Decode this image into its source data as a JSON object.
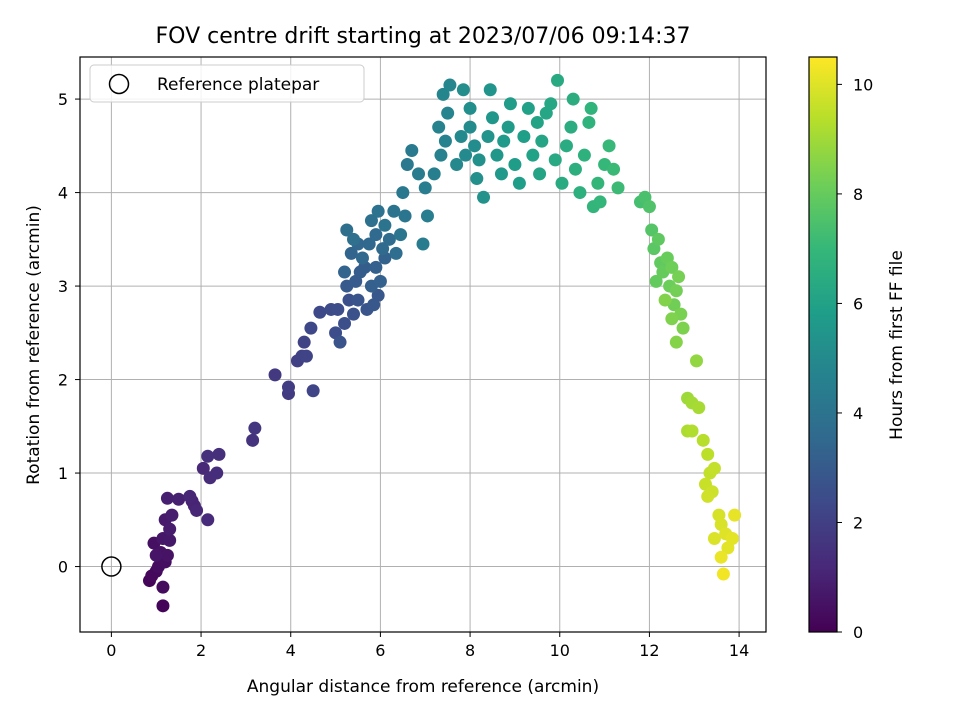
{
  "chart_data": {
    "type": "scatter",
    "title": "FOV centre drift starting at 2023/07/06 09:14:37",
    "xlabel": "Angular distance from reference (arcmin)",
    "ylabel": "Rotation from reference (arcmin)",
    "xlim": [
      -0.7,
      14.6
    ],
    "ylim": [
      -0.7,
      5.45
    ],
    "xticks": [
      0,
      2,
      4,
      6,
      8,
      10,
      12,
      14
    ],
    "yticks": [
      0,
      1,
      2,
      3,
      4,
      5
    ],
    "grid": true,
    "legend": {
      "position": "top-left",
      "entries": [
        "Reference platepar"
      ]
    },
    "reference_point": {
      "x": 0,
      "y": 0
    },
    "colorbar": {
      "label": "Hours from first FF file",
      "range": [
        0,
        10.5
      ],
      "ticks": [
        0,
        2,
        4,
        6,
        8,
        10
      ],
      "colormap": "viridis",
      "colors": [
        "#440154",
        "#482878",
        "#3e4989",
        "#31688e",
        "#26828e",
        "#1f9e89",
        "#35b779",
        "#6ece58",
        "#b5de2b",
        "#fde725"
      ]
    },
    "points": [
      [
        1.15,
        -0.42,
        0.1
      ],
      [
        0.85,
        -0.15,
        0.15
      ],
      [
        0.9,
        -0.1,
        0.2
      ],
      [
        1.0,
        -0.05,
        0.25
      ],
      [
        1.15,
        -0.22,
        0.3
      ],
      [
        1.05,
        0.0,
        0.35
      ],
      [
        1.2,
        0.05,
        0.4
      ],
      [
        0.95,
        0.25,
        0.45
      ],
      [
        1.1,
        0.15,
        0.5
      ],
      [
        1.25,
        0.12,
        0.55
      ],
      [
        1.0,
        0.12,
        0.6
      ],
      [
        1.15,
        0.3,
        0.65
      ],
      [
        1.3,
        0.28,
        0.7
      ],
      [
        1.2,
        0.5,
        0.75
      ],
      [
        1.3,
        0.4,
        0.8
      ],
      [
        1.35,
        0.55,
        0.85
      ],
      [
        1.25,
        0.73,
        0.9
      ],
      [
        1.5,
        0.72,
        0.95
      ],
      [
        1.8,
        0.7,
        1.0
      ],
      [
        1.85,
        0.65,
        1.05
      ],
      [
        1.75,
        0.75,
        1.1
      ],
      [
        1.9,
        0.6,
        1.15
      ],
      [
        2.05,
        1.05,
        1.2
      ],
      [
        2.15,
        0.5,
        1.25
      ],
      [
        2.2,
        0.95,
        1.3
      ],
      [
        2.35,
        1.0,
        1.35
      ],
      [
        2.4,
        1.2,
        1.4
      ],
      [
        2.15,
        1.18,
        1.45
      ],
      [
        3.15,
        1.35,
        1.55
      ],
      [
        3.2,
        1.48,
        1.65
      ],
      [
        3.65,
        2.05,
        1.75
      ],
      [
        3.95,
        1.85,
        1.85
      ],
      [
        3.95,
        1.92,
        1.9
      ],
      [
        4.15,
        2.2,
        2.0
      ],
      [
        4.25,
        2.25,
        2.05
      ],
      [
        4.3,
        2.4,
        2.1
      ],
      [
        4.35,
        2.25,
        2.15
      ],
      [
        4.5,
        1.88,
        2.2
      ],
      [
        4.45,
        2.55,
        2.3
      ],
      [
        4.65,
        2.72,
        2.35
      ],
      [
        4.9,
        2.75,
        2.4
      ],
      [
        5.0,
        2.5,
        2.45
      ],
      [
        5.05,
        2.75,
        2.5
      ],
      [
        5.2,
        2.6,
        2.55
      ],
      [
        5.3,
        2.85,
        2.6
      ],
      [
        5.4,
        2.7,
        2.65
      ],
      [
        5.1,
        2.4,
        2.7
      ],
      [
        5.5,
        2.85,
        2.75
      ],
      [
        5.7,
        2.75,
        2.8
      ],
      [
        5.85,
        2.8,
        2.85
      ],
      [
        5.95,
        2.9,
        2.9
      ],
      [
        5.25,
        3.0,
        2.95
      ],
      [
        5.45,
        3.05,
        3.0
      ],
      [
        5.55,
        3.15,
        3.05
      ],
      [
        5.65,
        3.2,
        3.1
      ],
      [
        5.8,
        3.0,
        3.15
      ],
      [
        5.9,
        3.2,
        3.2
      ],
      [
        6.0,
        3.05,
        3.25
      ],
      [
        6.1,
        3.3,
        3.3
      ],
      [
        5.2,
        3.15,
        3.35
      ],
      [
        5.35,
        3.35,
        3.4
      ],
      [
        5.5,
        3.45,
        3.45
      ],
      [
        5.6,
        3.3,
        3.5
      ],
      [
        5.75,
        3.45,
        3.55
      ],
      [
        5.9,
        3.55,
        3.6
      ],
      [
        6.05,
        3.4,
        3.65
      ],
      [
        6.2,
        3.5,
        3.7
      ],
      [
        6.35,
        3.35,
        3.75
      ],
      [
        5.25,
        3.6,
        3.8
      ],
      [
        5.4,
        3.5,
        3.85
      ],
      [
        5.8,
        3.7,
        3.9
      ],
      [
        5.95,
        3.8,
        3.95
      ],
      [
        6.1,
        3.65,
        4.0
      ],
      [
        6.3,
        3.8,
        4.05
      ],
      [
        6.45,
        3.55,
        4.1
      ],
      [
        6.55,
        3.75,
        4.15
      ],
      [
        6.5,
        4.0,
        4.2
      ],
      [
        6.6,
        4.3,
        4.25
      ],
      [
        6.7,
        4.45,
        4.3
      ],
      [
        6.85,
        4.2,
        4.35
      ],
      [
        6.95,
        3.45,
        4.4
      ],
      [
        7.05,
        3.75,
        4.45
      ],
      [
        7.0,
        4.05,
        4.5
      ],
      [
        7.2,
        4.2,
        4.55
      ],
      [
        7.35,
        4.4,
        4.6
      ],
      [
        7.45,
        4.55,
        4.65
      ],
      [
        7.3,
        4.7,
        4.7
      ],
      [
        7.5,
        4.85,
        4.75
      ],
      [
        7.4,
        5.05,
        4.8
      ],
      [
        7.55,
        5.15,
        4.85
      ],
      [
        7.7,
        4.3,
        4.9
      ],
      [
        7.8,
        4.6,
        4.95
      ],
      [
        7.9,
        4.4,
        5.0
      ],
      [
        8.0,
        4.7,
        5.05
      ],
      [
        8.1,
        4.5,
        5.1
      ],
      [
        7.85,
        5.1,
        5.15
      ],
      [
        8.0,
        4.9,
        5.2
      ],
      [
        8.15,
        4.15,
        5.25
      ],
      [
        8.2,
        4.35,
        5.3
      ],
      [
        8.3,
        3.95,
        5.35
      ],
      [
        8.4,
        4.6,
        5.4
      ],
      [
        8.45,
        5.1,
        5.45
      ],
      [
        8.5,
        4.8,
        5.5
      ],
      [
        8.6,
        4.4,
        5.55
      ],
      [
        8.7,
        4.2,
        5.6
      ],
      [
        8.75,
        4.55,
        5.65
      ],
      [
        8.85,
        4.7,
        5.7
      ],
      [
        8.9,
        4.95,
        5.75
      ],
      [
        9.0,
        4.3,
        5.8
      ],
      [
        9.1,
        4.1,
        5.85
      ],
      [
        9.2,
        4.6,
        5.9
      ],
      [
        9.3,
        4.9,
        5.95
      ],
      [
        9.4,
        4.4,
        6.0
      ],
      [
        9.5,
        4.75,
        6.05
      ],
      [
        9.55,
        4.2,
        6.1
      ],
      [
        9.6,
        4.55,
        6.15
      ],
      [
        9.7,
        4.85,
        6.2
      ],
      [
        9.8,
        4.95,
        6.25
      ],
      [
        9.9,
        4.35,
        6.3
      ],
      [
        9.95,
        5.2,
        6.35
      ],
      [
        10.05,
        4.1,
        6.4
      ],
      [
        10.15,
        4.5,
        6.45
      ],
      [
        10.25,
        4.7,
        6.5
      ],
      [
        10.3,
        5.0,
        6.55
      ],
      [
        10.35,
        4.25,
        6.6
      ],
      [
        10.45,
        4.0,
        6.65
      ],
      [
        10.55,
        4.4,
        6.7
      ],
      [
        10.65,
        4.75,
        6.75
      ],
      [
        10.7,
        4.9,
        6.8
      ],
      [
        10.75,
        3.85,
        6.85
      ],
      [
        10.85,
        4.1,
        6.9
      ],
      [
        10.9,
        3.9,
        6.95
      ],
      [
        11.0,
        4.3,
        7.0
      ],
      [
        11.1,
        4.5,
        7.05
      ],
      [
        11.2,
        4.25,
        7.1
      ],
      [
        11.3,
        4.05,
        7.15
      ],
      [
        11.8,
        3.9,
        7.35
      ],
      [
        11.9,
        3.95,
        7.45
      ],
      [
        12.0,
        3.85,
        7.55
      ],
      [
        12.05,
        3.6,
        7.65
      ],
      [
        12.1,
        3.4,
        7.75
      ],
      [
        12.2,
        3.5,
        7.85
      ],
      [
        12.25,
        3.25,
        7.9
      ],
      [
        12.15,
        3.05,
        7.95
      ],
      [
        12.3,
        3.15,
        8.0
      ],
      [
        12.4,
        3.3,
        8.05
      ],
      [
        12.45,
        3.0,
        8.1
      ],
      [
        12.5,
        3.2,
        8.15
      ],
      [
        12.55,
        2.8,
        8.2
      ],
      [
        12.6,
        2.95,
        8.25
      ],
      [
        12.65,
        3.1,
        8.3
      ],
      [
        12.7,
        2.7,
        8.35
      ],
      [
        12.75,
        2.55,
        8.4
      ],
      [
        12.5,
        2.65,
        8.45
      ],
      [
        12.35,
        2.85,
        8.5
      ],
      [
        12.6,
        2.4,
        8.55
      ],
      [
        13.05,
        2.2,
        8.75
      ],
      [
        12.85,
        1.8,
        8.95
      ],
      [
        12.95,
        1.75,
        9.05
      ],
      [
        13.1,
        1.7,
        9.1
      ],
      [
        12.85,
        1.45,
        9.2
      ],
      [
        12.95,
        1.45,
        9.25
      ],
      [
        13.2,
        1.35,
        9.35
      ],
      [
        13.3,
        1.2,
        9.45
      ],
      [
        13.35,
        1.0,
        9.55
      ],
      [
        13.45,
        1.05,
        9.6
      ],
      [
        13.25,
        0.88,
        9.65
      ],
      [
        13.4,
        0.8,
        9.7
      ],
      [
        13.3,
        0.75,
        9.75
      ],
      [
        13.55,
        0.55,
        9.85
      ],
      [
        13.6,
        0.45,
        9.9
      ],
      [
        13.45,
        0.3,
        9.95
      ],
      [
        13.7,
        0.35,
        10.0
      ],
      [
        13.75,
        0.2,
        10.05
      ],
      [
        13.85,
        0.3,
        10.1
      ],
      [
        13.9,
        0.55,
        10.15
      ],
      [
        13.6,
        0.1,
        10.2
      ],
      [
        13.65,
        -0.08,
        10.3
      ]
    ]
  }
}
